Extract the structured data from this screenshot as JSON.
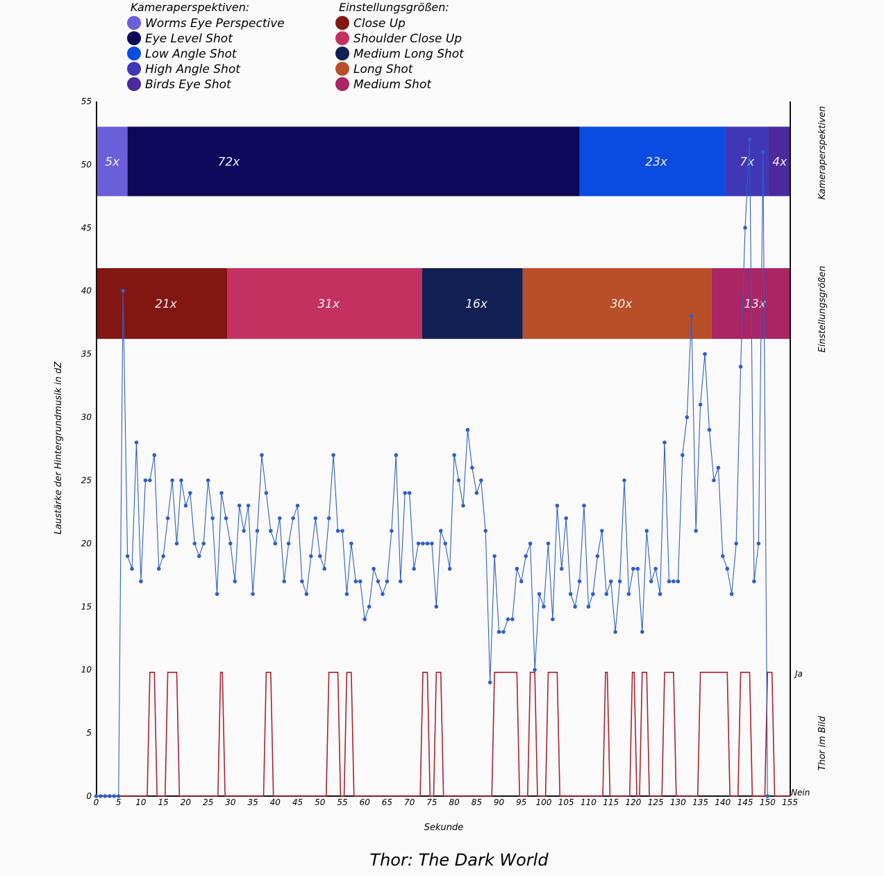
{
  "legend": {
    "perspective_title": "Kameraperspektiven:",
    "size_title": "Einstellungsgrößen:",
    "perspective_items": [
      {
        "label": "Worms Eye Perspective",
        "color": "#6a5fd8"
      },
      {
        "label": "Eye Level Shot",
        "color": "#0e085a"
      },
      {
        "label": "Low Angle Shot",
        "color": "#0a4be0"
      },
      {
        "label": "High Angle Shot",
        "color": "#3f37b5"
      },
      {
        "label": "Birds Eye Shot",
        "color": "#4a2a9c"
      }
    ],
    "size_items": [
      {
        "label": "Close Up",
        "color": "#821612"
      },
      {
        "label": "Shoulder Close Up",
        "color": "#c4305f"
      },
      {
        "label": "Medium Long Shot",
        "color": "#132053"
      },
      {
        "label": "Long Shot",
        "color": "#b84f28"
      },
      {
        "label": "Medium Shot",
        "color": "#ab2463"
      }
    ]
  },
  "chart_data": {
    "type": "line",
    "title": "Thor: The Dark World",
    "xlabel": "Sekunde",
    "ylabel": "Laustärke der Hintergrundmusik in dZ",
    "right_labels": {
      "perspective": "Kameraperspektiven",
      "size": "Einstellungsgrößen",
      "thor": "Thor im Bild",
      "yes": "Ja",
      "no": "Nein"
    },
    "xlim": [
      0,
      155
    ],
    "ylim": [
      0,
      55
    ],
    "xticks": [
      0,
      5,
      10,
      15,
      20,
      25,
      30,
      35,
      40,
      45,
      50,
      55,
      60,
      65,
      70,
      75,
      80,
      85,
      90,
      95,
      100,
      105,
      110,
      115,
      120,
      125,
      130,
      135,
      140,
      145,
      150,
      155
    ],
    "yticks": [
      0,
      5,
      10,
      15,
      20,
      25,
      30,
      35,
      40,
      45,
      50,
      55
    ],
    "perspective_band": {
      "y_range": [
        47.5,
        53
      ],
      "segments": [
        {
          "start": 0,
          "end": 7,
          "label": "5x",
          "color": "#6a5fd8"
        },
        {
          "start": 7,
          "end": 108,
          "label": "72x",
          "color": "#0e085a"
        },
        {
          "start": 108,
          "end": 140.5,
          "label": "23x",
          "color": "#0a4be0"
        },
        {
          "start": 140.5,
          "end": 150.2,
          "label": "7x",
          "color": "#3f37b5"
        },
        {
          "start": 150.2,
          "end": 156,
          "label": "4x",
          "color": "#4a2a9c"
        }
      ]
    },
    "size_band": {
      "y_range": [
        36.2,
        41.8
      ],
      "segments": [
        {
          "start": 0,
          "end": 29.3,
          "label": "21x",
          "color": "#821612"
        },
        {
          "start": 29.3,
          "end": 72.8,
          "label": "31x",
          "color": "#c4305f"
        },
        {
          "start": 72.8,
          "end": 95.3,
          "label": "16x",
          "color": "#132053"
        },
        {
          "start": 95.3,
          "end": 137.5,
          "label": "30x",
          "color": "#b84f28"
        },
        {
          "start": 137.5,
          "end": 156,
          "label": "13x",
          "color": "#ab2463"
        }
      ]
    },
    "series": [
      {
        "name": "Laustärke der Hintergrundmusik",
        "color": "#2f5fc8",
        "values": [
          0,
          0,
          0,
          0,
          0,
          0,
          40,
          19,
          18,
          28,
          17,
          25,
          25,
          27,
          18,
          19,
          22,
          25,
          20,
          25,
          23,
          24,
          20,
          19,
          20,
          25,
          22,
          16,
          24,
          22,
          20,
          17,
          23,
          21,
          23,
          16,
          21,
          27,
          24,
          21,
          20,
          22,
          17,
          20,
          22,
          23,
          17,
          16,
          19,
          22,
          19,
          18,
          22,
          27,
          21,
          21,
          16,
          20,
          17,
          17,
          14,
          15,
          18,
          17,
          16,
          17,
          21,
          27,
          17,
          24,
          24,
          18,
          20,
          20,
          20,
          20,
          15,
          21,
          20,
          18,
          27,
          25,
          23,
          29,
          26,
          24,
          25,
          21,
          9,
          19,
          13,
          13,
          14,
          14,
          18,
          17,
          19,
          20,
          10,
          16,
          15,
          20,
          14,
          23,
          18,
          22,
          16,
          15,
          17,
          23,
          15,
          16,
          19,
          21,
          16,
          17,
          13,
          17,
          25,
          16,
          18,
          18,
          13,
          21,
          17,
          18,
          16,
          28,
          17,
          17,
          17,
          27,
          30,
          38,
          21,
          31,
          35,
          29,
          25,
          26,
          19,
          18,
          16,
          20,
          34,
          45,
          52,
          17,
          20,
          51,
          0
        ]
      },
      {
        "name": "Thor im Bild",
        "color": "#b0202c",
        "intervals": [
          [
            12,
            13
          ],
          [
            16,
            18
          ],
          [
            27.8,
            28.2
          ],
          [
            38,
            39
          ],
          [
            52,
            54
          ],
          [
            56,
            57
          ],
          [
            73,
            74
          ],
          [
            76,
            77
          ],
          [
            89,
            94
          ],
          [
            97,
            98
          ],
          [
            101,
            103
          ],
          [
            113.8,
            114.2
          ],
          [
            119.8,
            120.2
          ],
          [
            122,
            123
          ],
          [
            127,
            129
          ],
          [
            135,
            141
          ],
          [
            144,
            146
          ],
          [
            150,
            151
          ]
        ]
      }
    ]
  }
}
